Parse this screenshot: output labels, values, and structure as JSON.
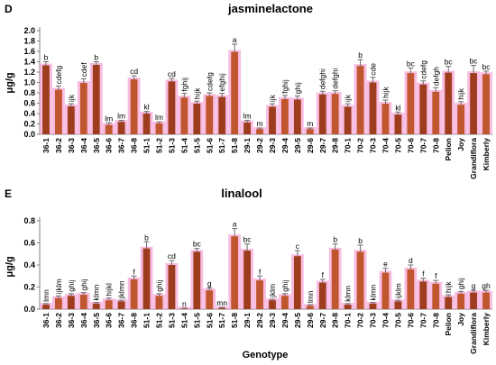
{
  "colors": {
    "bar_dark": "#9e3d1e",
    "bar_light": "#c0562d",
    "halo": "#f7a7d8",
    "axis": "#808080"
  },
  "xlabel": "Genotype",
  "chart_data": [
    {
      "type": "bar",
      "panel": "D",
      "title": "jasminelactone",
      "ylabel": "μg/g",
      "ylim": [
        0,
        2.0
      ],
      "yticks": [
        "0.0",
        "0.2",
        "0.4",
        "0.6",
        "0.8",
        "1.0",
        "1.2",
        "1.4",
        "1.6",
        "1.8",
        "2.0"
      ],
      "grid": false,
      "categories": [
        "36-1",
        "36-2",
        "36-3",
        "36-4",
        "36-5",
        "36-6",
        "36-7",
        "36-8",
        "51-1",
        "51-2",
        "51-3",
        "51-4",
        "51-5",
        "51-6",
        "51-7",
        "51-8",
        "29-1",
        "29-2",
        "29-3",
        "29-4",
        "29-5",
        "29-6",
        "29-7",
        "29-8",
        "70-1",
        "70-2",
        "70-3",
        "70-4",
        "70-5",
        "70-6",
        "70-7",
        "70-8",
        "Pelion",
        "Joy",
        "Grandiflora",
        "Kimberly"
      ],
      "values": [
        1.33,
        0.86,
        0.54,
        0.99,
        1.34,
        0.18,
        0.24,
        1.06,
        0.4,
        0.21,
        1.02,
        0.71,
        0.59,
        0.74,
        0.72,
        1.59,
        0.23,
        0.1,
        0.53,
        0.68,
        0.67,
        0.1,
        0.77,
        0.78,
        0.53,
        1.32,
        1.0,
        0.59,
        0.38,
        1.18,
        0.96,
        0.82,
        1.19,
        0.57,
        1.18,
        1.16
      ],
      "errors": [
        0.07,
        0.07,
        0.05,
        0.08,
        0.06,
        0.04,
        0.03,
        0.07,
        0.04,
        0.03,
        0.06,
        0.08,
        0.05,
        0.06,
        0.07,
        0.15,
        0.04,
        0.02,
        0.06,
        0.07,
        0.07,
        0.02,
        0.06,
        0.06,
        0.06,
        0.12,
        0.1,
        0.07,
        0.05,
        0.1,
        0.07,
        0.08,
        0.12,
        0.06,
        0.15,
        0.06
      ],
      "letters": [
        "b",
        "cdefg",
        "ijk",
        "cdef",
        "b",
        "lm",
        "lm",
        "cd",
        "kl",
        "lm",
        "cd",
        "fghij",
        "hijk",
        "cdefg",
        "efghij",
        "a",
        "lm",
        "m",
        "ijk",
        "fghij",
        "ghij",
        "m",
        "defghi",
        "defghi",
        "ijk",
        "b",
        "cde",
        "hijk",
        "kl",
        "bc",
        "cdefg",
        "defgh",
        "bc",
        "hijk",
        "bc",
        "bc"
      ]
    },
    {
      "type": "bar",
      "panel": "E",
      "title": "linalool",
      "ylabel": "μg/g",
      "ylim": [
        0,
        0.8
      ],
      "yticks": [
        "0.0",
        "0.2",
        "0.4",
        "0.6",
        "0.8"
      ],
      "grid": false,
      "categories": [
        "36-1",
        "36-2",
        "36-3",
        "36-4",
        "36-5",
        "36-6",
        "36-7",
        "36-8",
        "51-1",
        "51-2",
        "51-3",
        "51-4",
        "51-5",
        "51-6",
        "51-7",
        "51-8",
        "29-1",
        "29-2",
        "29-3",
        "29-4",
        "29-5",
        "29-6",
        "29-7",
        "29-8",
        "70-1",
        "70-2",
        "70-3",
        "70-4",
        "70-5",
        "70-6",
        "70-7",
        "70-8",
        "Pelion",
        "Joy",
        "Grandiflora",
        "Kimberly"
      ],
      "values": [
        0.04,
        0.1,
        0.12,
        0.13,
        0.05,
        0.08,
        0.07,
        0.27,
        0.55,
        0.12,
        0.4,
        0.005,
        0.52,
        0.17,
        0.01,
        0.66,
        0.53,
        0.26,
        0.08,
        0.12,
        0.48,
        0.03,
        0.24,
        0.54,
        0.04,
        0.52,
        0.05,
        0.33,
        0.07,
        0.36,
        0.25,
        0.23,
        0.11,
        0.14,
        0.15,
        0.15
      ],
      "errors": [
        0.01,
        0.02,
        0.02,
        0.02,
        0.01,
        0.02,
        0.01,
        0.03,
        0.06,
        0.02,
        0.04,
        0.005,
        0.03,
        0.02,
        0.005,
        0.07,
        0.06,
        0.04,
        0.01,
        0.02,
        0.05,
        0.01,
        0.03,
        0.05,
        0.01,
        0.06,
        0.01,
        0.04,
        0.01,
        0.04,
        0.03,
        0.03,
        0.02,
        0.02,
        0.02,
        0.02
      ],
      "letters": [
        "lmn",
        "ijklm",
        "ghij",
        "ghij",
        "klmn",
        "hijkl",
        "jklmn",
        "f",
        "b",
        "ghij",
        "cd",
        "n",
        "bc",
        "g",
        "mn",
        "a",
        "bc",
        "f",
        "jklm",
        "ghij",
        "c",
        "lmn",
        "f",
        "b",
        "klmn",
        "b",
        "klmn",
        "e",
        "ijklm",
        "d",
        "f",
        "f",
        "hijk",
        "ghij",
        "g",
        "gh"
      ]
    }
  ]
}
